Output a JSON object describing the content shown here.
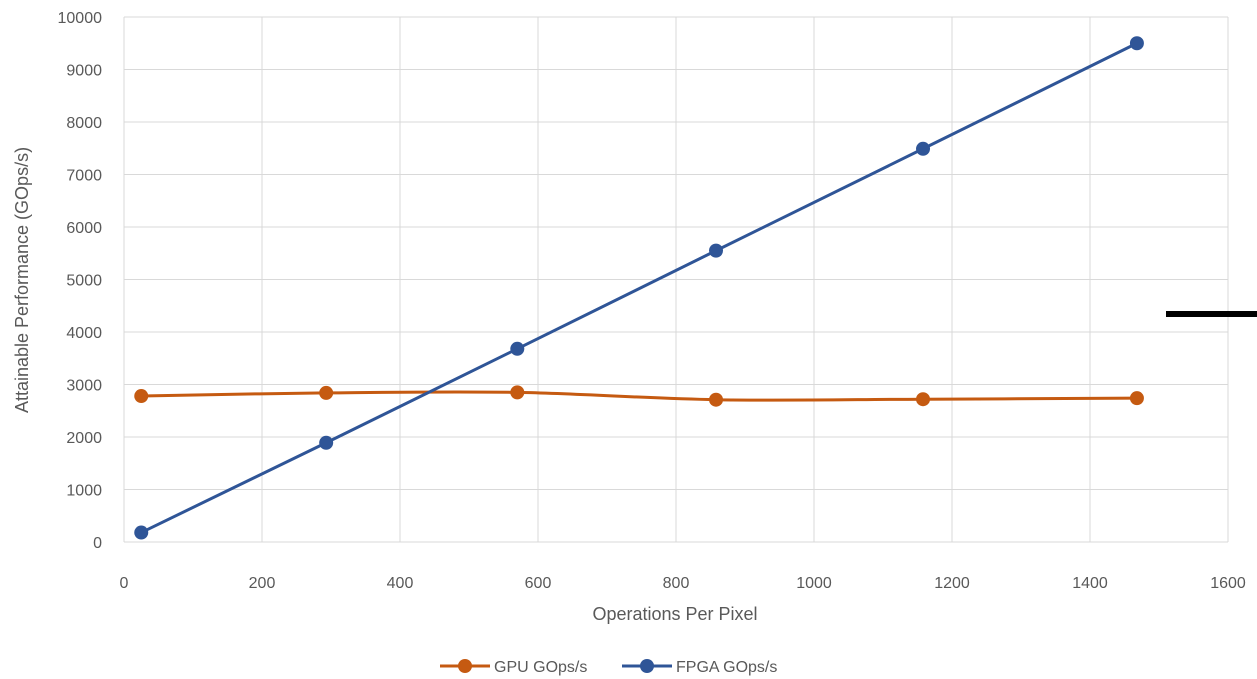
{
  "chart_data": {
    "type": "line",
    "title": "",
    "xlabel": "Operations Per Pixel",
    "ylabel": "Attainable Performance (GOps/s)",
    "xlim": [
      0,
      1600
    ],
    "ylim": [
      0,
      10000
    ],
    "x_ticks": [
      "0",
      "200",
      "400",
      "600",
      "800",
      "1000",
      "1200",
      "1400",
      "1600"
    ],
    "y_ticks": [
      "0",
      "1000",
      "2000",
      "3000",
      "4000",
      "5000",
      "6000",
      "7000",
      "8000",
      "9000",
      "10000"
    ],
    "grid": true,
    "legend_position": "bottom",
    "series": [
      {
        "name": "GPU GOps/s",
        "color": "#C55A11",
        "x": [
          25,
          293,
          570,
          858,
          1158,
          1468
        ],
        "y": [
          2780,
          2840,
          2850,
          2710,
          2720,
          2740
        ]
      },
      {
        "name": "FPGA GOps/s",
        "color": "#2F5597",
        "x": [
          25,
          293,
          570,
          858,
          1158,
          1468
        ],
        "y": [
          180,
          1890,
          3680,
          5550,
          7490,
          9500
        ]
      }
    ]
  }
}
